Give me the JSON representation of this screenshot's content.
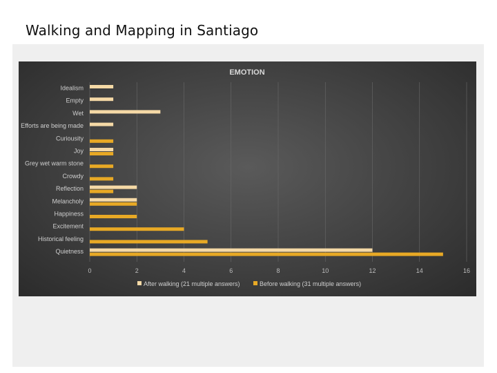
{
  "slide": {
    "title": "Walking and Mapping in Santiago"
  },
  "colors": {
    "after": "#f5d9a6",
    "before": "#e8a925",
    "grid": "#6a6a6a"
  },
  "chart_data": {
    "type": "bar",
    "orientation": "horizontal",
    "title": "EMOTION",
    "categories": [
      "Idealism",
      "Empty",
      "Wet",
      "Efforts are being made",
      "Curiousity",
      "Joy",
      "Grey wet warm stone",
      "Crowdy",
      "Reflection",
      "Melancholy",
      "Happiness",
      "Excitement",
      "Historical feeling",
      "Quietness"
    ],
    "series": [
      {
        "name": "After walking (21 multiple answers)",
        "values": [
          1,
          1,
          3,
          1,
          0,
          1,
          0,
          0,
          2,
          2,
          0,
          0,
          0,
          12
        ]
      },
      {
        "name": "Before walking (31 multiple answers)",
        "values": [
          0,
          0,
          0,
          0,
          1,
          1,
          1,
          1,
          1,
          2,
          2,
          4,
          5,
          15
        ]
      }
    ],
    "xlim": [
      0,
      16
    ],
    "xticks": [
      "0",
      "2",
      "4",
      "6",
      "8",
      "10",
      "12",
      "14",
      "16"
    ],
    "grid": true,
    "legend_position": "bottom"
  }
}
